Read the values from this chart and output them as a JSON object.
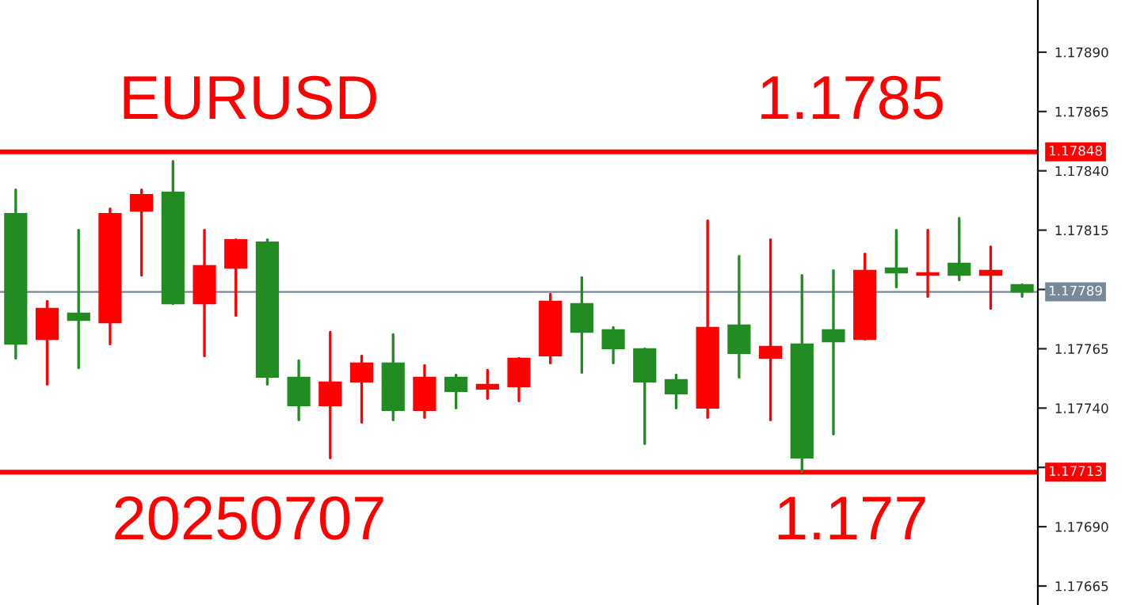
{
  "chart_data": {
    "type": "candlestick",
    "categories": [
      null,
      null,
      null,
      null,
      null,
      null,
      null,
      null,
      null,
      null,
      null,
      null,
      null,
      null,
      null,
      null,
      null,
      null,
      null,
      null,
      null,
      null,
      null,
      null,
      null,
      null,
      null,
      null,
      null,
      null,
      null,
      null,
      null
    ],
    "ohlc": [
      [
        1.17822,
        1.17832,
        1.17761,
        1.17767
      ],
      [
        1.17769,
        1.17785,
        1.1775,
        1.17782
      ],
      [
        1.1778,
        1.17815,
        1.17757,
        1.17777
      ],
      [
        1.17776,
        1.17824,
        1.17767,
        1.17822
      ],
      [
        1.17823,
        1.17832,
        1.17796,
        1.1783
      ],
      [
        1.17831,
        1.17844,
        1.17784,
        1.17784
      ],
      [
        1.17784,
        1.17815,
        1.17762,
        1.178
      ],
      [
        1.17799,
        1.17811,
        1.17779,
        1.17811
      ],
      [
        1.1781,
        1.17811,
        1.1775,
        1.17753
      ],
      [
        1.17753,
        1.1776,
        1.17735,
        1.17741
      ],
      [
        1.17741,
        1.17772,
        1.17719,
        1.17751
      ],
      [
        1.17751,
        1.17762,
        1.17734,
        1.17759
      ],
      [
        1.17759,
        1.17771,
        1.17735,
        1.17739
      ],
      [
        1.17739,
        1.17758,
        1.17736,
        1.17753
      ],
      [
        1.17753,
        1.17754,
        1.1774,
        1.17747
      ],
      [
        1.17748,
        1.17756,
        1.17744,
        1.1775
      ],
      [
        1.17749,
        1.17761,
        1.17743,
        1.17761
      ],
      [
        1.17762,
        1.17788,
        1.17759,
        1.17785
      ],
      [
        1.17784,
        1.17795,
        1.17755,
        1.17772
      ],
      [
        1.17773,
        1.17774,
        1.17759,
        1.17765
      ],
      [
        1.17765,
        1.17765,
        1.17725,
        1.17751
      ],
      [
        1.17752,
        1.17754,
        1.1774,
        1.17746
      ],
      [
        1.1774,
        1.17819,
        1.17736,
        1.17774
      ],
      [
        1.17775,
        1.17804,
        1.17753,
        1.17763
      ],
      [
        1.17761,
        1.17811,
        1.17735,
        1.17766
      ],
      [
        1.17767,
        1.17796,
        1.17713,
        1.17719
      ],
      [
        1.17773,
        1.17798,
        1.17729,
        1.17768
      ],
      [
        1.17769,
        1.17805,
        1.17769,
        1.17798
      ],
      [
        1.17799,
        1.17815,
        1.17791,
        1.17797
      ],
      [
        1.17796,
        1.17815,
        1.17787,
        1.17797
      ],
      [
        1.17801,
        1.1782,
        1.17794,
        1.17796
      ],
      [
        1.17796,
        1.17808,
        1.17782,
        1.17798
      ],
      [
        1.17792,
        1.17792,
        1.17787,
        1.17789
      ]
    ],
    "colors": [
      "#228b22",
      "#ff0000",
      "#228b22",
      "#ff0000",
      "#ff0000",
      "#228b22",
      "#ff0000",
      "#ff0000",
      "#228b22",
      "#228b22",
      "#ff0000",
      "#ff0000",
      "#228b22",
      "#ff0000",
      "#228b22",
      "#ff0000",
      "#ff0000",
      "#ff0000",
      "#228b22",
      "#228b22",
      "#228b22",
      "#228b22",
      "#ff0000",
      "#228b22",
      "#ff0000",
      "#228b22",
      "#228b22",
      "#ff0000",
      "#228b22",
      "#ff0000",
      "#228b22",
      "#ff0000",
      "#228b22"
    ],
    "ylim": [
      1.17657,
      1.17912
    ],
    "yticks": [
      {
        "value": 1.1789,
        "label": "1.17890"
      },
      1.17865,
      {
        "value": 1.1784,
        "label": "1.17840"
      },
      1.17815,
      {
        "value": 1.1779,
        "label": null
      },
      1.17765,
      {
        "value": 1.1774,
        "label": "1.17740"
      },
      {
        "value": 1.17715,
        "label": null
      },
      {
        "value": 1.1769,
        "label": "1.17690"
      },
      1.17665
    ],
    "ref_lines": [
      {
        "axis": "y",
        "value": 1.17848,
        "label": "1.17848",
        "color": "#ff0000"
      },
      {
        "axis": "y",
        "value": 1.17789,
        "label": "1.17789",
        "color": "#778899"
      },
      {
        "axis": "y",
        "value": 1.17713,
        "label": "1.17713",
        "color": "#ff0000"
      }
    ],
    "annotations": [
      "EURUSD",
      "1.1785",
      "20250707",
      "1.177"
    ],
    "tick_labels": "y",
    "grid": false
  }
}
